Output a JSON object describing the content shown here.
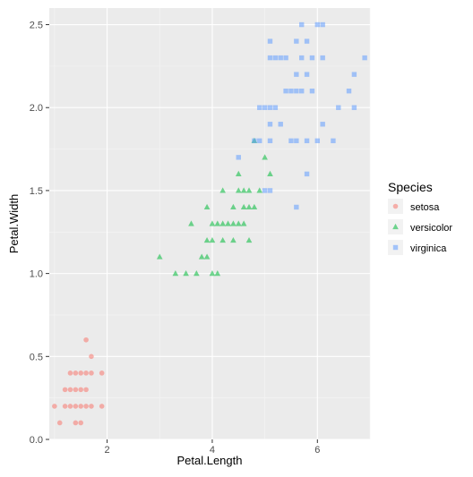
{
  "chart_data": {
    "type": "scatter",
    "title": "",
    "xlabel": "Petal.Length",
    "ylabel": "Petal.Width",
    "xlim": [
      0.9,
      7.0
    ],
    "ylim": [
      0.0,
      2.6
    ],
    "x_ticks": [
      2,
      4,
      6
    ],
    "y_ticks": [
      0.0,
      0.5,
      1.0,
      1.5,
      2.0,
      2.5
    ],
    "y_tick_labels": [
      "0.0",
      "0.5",
      "1.0",
      "1.5",
      "2.0",
      "2.5"
    ],
    "grid": true,
    "legend": {
      "title": "Species",
      "position": "right"
    },
    "series": [
      {
        "name": "setosa",
        "marker": "circle",
        "color": "#F8766D",
        "points": [
          [
            1.0,
            0.2
          ],
          [
            1.1,
            0.1
          ],
          [
            1.2,
            0.2
          ],
          [
            1.3,
            0.2
          ],
          [
            1.3,
            0.3
          ],
          [
            1.3,
            0.4
          ],
          [
            1.4,
            0.2
          ],
          [
            1.4,
            0.3
          ],
          [
            1.4,
            0.1
          ],
          [
            1.5,
            0.2
          ],
          [
            1.5,
            0.4
          ],
          [
            1.5,
            0.1
          ],
          [
            1.6,
            0.2
          ],
          [
            1.6,
            0.4
          ],
          [
            1.7,
            0.2
          ],
          [
            1.7,
            0.4
          ],
          [
            1.7,
            0.5
          ],
          [
            1.6,
            0.6
          ],
          [
            1.9,
            0.2
          ],
          [
            1.9,
            0.4
          ],
          [
            1.5,
            0.3
          ],
          [
            1.6,
            0.3
          ],
          [
            1.2,
            0.3
          ],
          [
            1.4,
            0.4
          ]
        ]
      },
      {
        "name": "versicolor",
        "marker": "triangle",
        "color": "#00BA38",
        "points": [
          [
            3.0,
            1.1
          ],
          [
            3.3,
            1.0
          ],
          [
            3.5,
            1.0
          ],
          [
            3.6,
            1.3
          ],
          [
            3.7,
            1.0
          ],
          [
            3.8,
            1.1
          ],
          [
            3.9,
            1.1
          ],
          [
            3.9,
            1.2
          ],
          [
            3.9,
            1.4
          ],
          [
            4.0,
            1.0
          ],
          [
            4.0,
            1.2
          ],
          [
            4.0,
            1.3
          ],
          [
            4.1,
            1.0
          ],
          [
            4.1,
            1.3
          ],
          [
            4.2,
            1.2
          ],
          [
            4.2,
            1.3
          ],
          [
            4.2,
            1.5
          ],
          [
            4.3,
            1.3
          ],
          [
            4.4,
            1.2
          ],
          [
            4.4,
            1.3
          ],
          [
            4.4,
            1.4
          ],
          [
            4.5,
            1.3
          ],
          [
            4.5,
            1.5
          ],
          [
            4.5,
            1.6
          ],
          [
            4.6,
            1.3
          ],
          [
            4.6,
            1.4
          ],
          [
            4.6,
            1.5
          ],
          [
            4.7,
            1.2
          ],
          [
            4.7,
            1.4
          ],
          [
            4.7,
            1.5
          ],
          [
            4.8,
            1.4
          ],
          [
            4.8,
            1.8
          ],
          [
            4.9,
            1.5
          ],
          [
            5.0,
            1.7
          ],
          [
            5.1,
            1.6
          ]
        ]
      },
      {
        "name": "virginica",
        "marker": "square",
        "color": "#619CFF",
        "points": [
          [
            4.5,
            1.7
          ],
          [
            4.8,
            1.8
          ],
          [
            4.9,
            1.8
          ],
          [
            4.9,
            2.0
          ],
          [
            5.0,
            1.5
          ],
          [
            5.0,
            2.0
          ],
          [
            5.1,
            1.5
          ],
          [
            5.1,
            1.8
          ],
          [
            5.1,
            1.9
          ],
          [
            5.1,
            2.0
          ],
          [
            5.1,
            2.3
          ],
          [
            5.1,
            2.4
          ],
          [
            5.2,
            2.0
          ],
          [
            5.2,
            2.3
          ],
          [
            5.3,
            1.9
          ],
          [
            5.3,
            2.3
          ],
          [
            5.4,
            2.1
          ],
          [
            5.4,
            2.3
          ],
          [
            5.5,
            1.8
          ],
          [
            5.5,
            2.1
          ],
          [
            5.6,
            1.4
          ],
          [
            5.6,
            1.8
          ],
          [
            5.6,
            2.1
          ],
          [
            5.6,
            2.2
          ],
          [
            5.6,
            2.4
          ],
          [
            5.7,
            2.1
          ],
          [
            5.7,
            2.3
          ],
          [
            5.7,
            2.5
          ],
          [
            5.8,
            1.6
          ],
          [
            5.8,
            1.8
          ],
          [
            5.8,
            2.2
          ],
          [
            5.9,
            2.1
          ],
          [
            5.9,
            2.3
          ],
          [
            6.0,
            1.8
          ],
          [
            6.0,
            2.5
          ],
          [
            6.1,
            1.9
          ],
          [
            6.1,
            2.3
          ],
          [
            6.1,
            2.5
          ],
          [
            6.3,
            1.8
          ],
          [
            6.4,
            2.0
          ],
          [
            6.6,
            2.1
          ],
          [
            6.7,
            2.0
          ],
          [
            6.7,
            2.2
          ],
          [
            6.9,
            2.3
          ],
          [
            5.8,
            2.4
          ]
        ]
      }
    ]
  }
}
